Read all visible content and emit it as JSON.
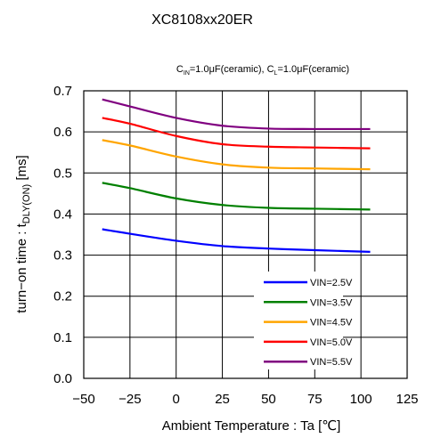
{
  "chart_data": {
    "type": "line",
    "title": "XC8108xx20ER",
    "condition": {
      "cin_sym": "C",
      "cin_sub": "IN",
      "cin_val": "=1.0μF(ceramic), ",
      "cl_sym": "C",
      "cl_sub": "L",
      "cl_val": "=1.0μF(ceramic)"
    },
    "xlabel": "Ambient Temperature : Ta [℃]",
    "ylabel": {
      "main": "turn−on time : t",
      "sub": "DLY(ON)",
      "unit": " [ms]"
    },
    "xlim": [
      -50,
      125
    ],
    "ylim": [
      0.0,
      0.7
    ],
    "xticks": [
      "−50",
      "−25",
      "0",
      "25",
      "50",
      "75",
      "100",
      "125"
    ],
    "yticks": [
      "0.0",
      "0.1",
      "0.2",
      "0.3",
      "0.4",
      "0.5",
      "0.6",
      "0.7"
    ],
    "grid": true,
    "legend_position": "bottom-right",
    "x": [
      -40,
      -25,
      0,
      25,
      50,
      75,
      105
    ],
    "series": [
      {
        "name": "VIN=2.5V",
        "color": "#0000ff",
        "values": [
          0.363,
          0.352,
          0.335,
          0.322,
          0.316,
          0.312,
          0.308
        ]
      },
      {
        "name": "VIN=3.5V",
        "color": "#008000",
        "values": [
          0.476,
          0.463,
          0.438,
          0.422,
          0.415,
          0.413,
          0.411
        ]
      },
      {
        "name": "VIN=4.5V",
        "color": "#ffa500",
        "values": [
          0.58,
          0.567,
          0.54,
          0.521,
          0.513,
          0.511,
          0.509
        ]
      },
      {
        "name": "VIN=5.0V",
        "color": "#ff0000",
        "values": [
          0.634,
          0.62,
          0.59,
          0.57,
          0.564,
          0.562,
          0.56
        ]
      },
      {
        "name": "VIN=5.5V",
        "color": "#800080",
        "values": [
          0.679,
          0.662,
          0.634,
          0.615,
          0.608,
          0.607,
          0.607
        ]
      }
    ]
  }
}
